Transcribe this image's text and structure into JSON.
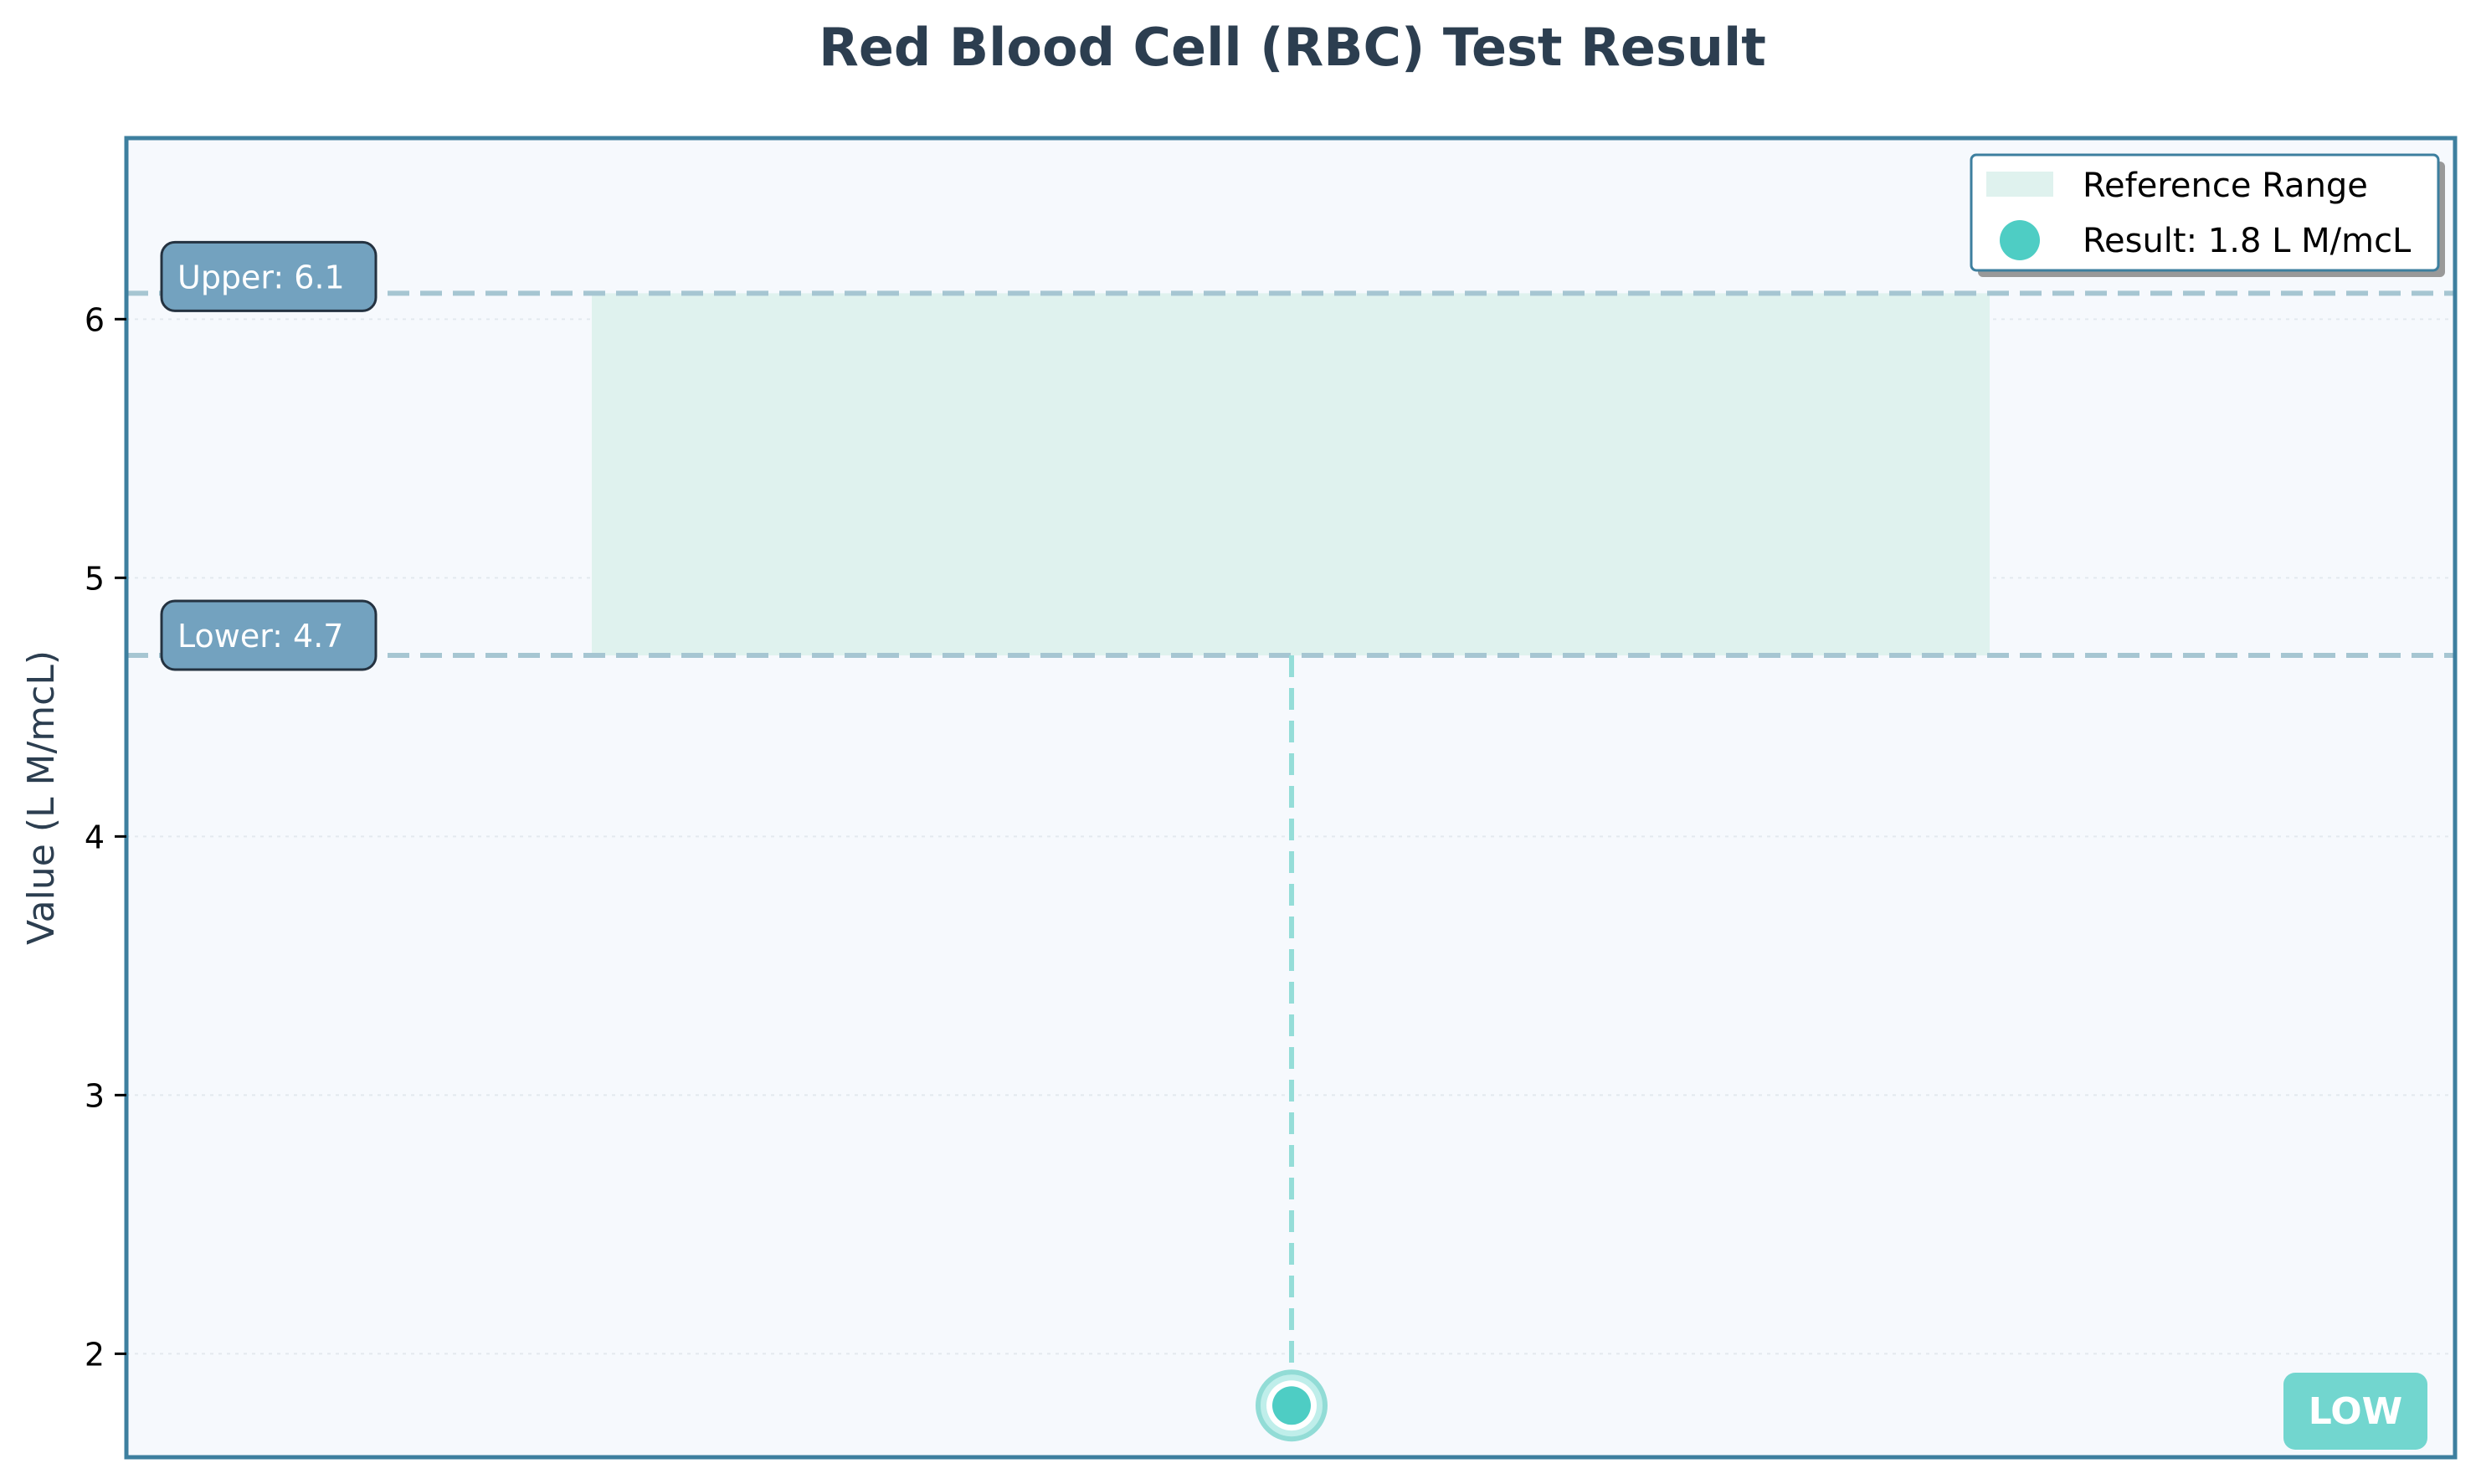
{
  "chart_data": {
    "type": "scatter",
    "title": "Red Blood Cell (RBC) Test Result",
    "ylabel": "Value (L M/mcL)",
    "ylim": [
      1.6,
      6.7
    ],
    "yticks": [
      2,
      3,
      4,
      5,
      6
    ],
    "reference_range": {
      "lower": 4.7,
      "upper": 6.1
    },
    "result": {
      "value": 1.8
    },
    "bound_labels": {
      "upper": "Upper: 6.1",
      "lower": "Lower: 4.7"
    },
    "legend": {
      "placement": "top-right",
      "reference_label": "Reference Range",
      "result_label": "Result: 1.8 L M/mcL"
    },
    "status": "LOW",
    "grid": true,
    "colors": {
      "title": "#2c3e50",
      "frame": "#3d7f9f",
      "plot_background": "#f6f9fd",
      "reference_band": "#dff2ee",
      "bound_line": "#a6c6d2",
      "marker": "#4ecdc4",
      "label_box": "#73a2bf",
      "status_badge": "#72d6cf"
    }
  }
}
